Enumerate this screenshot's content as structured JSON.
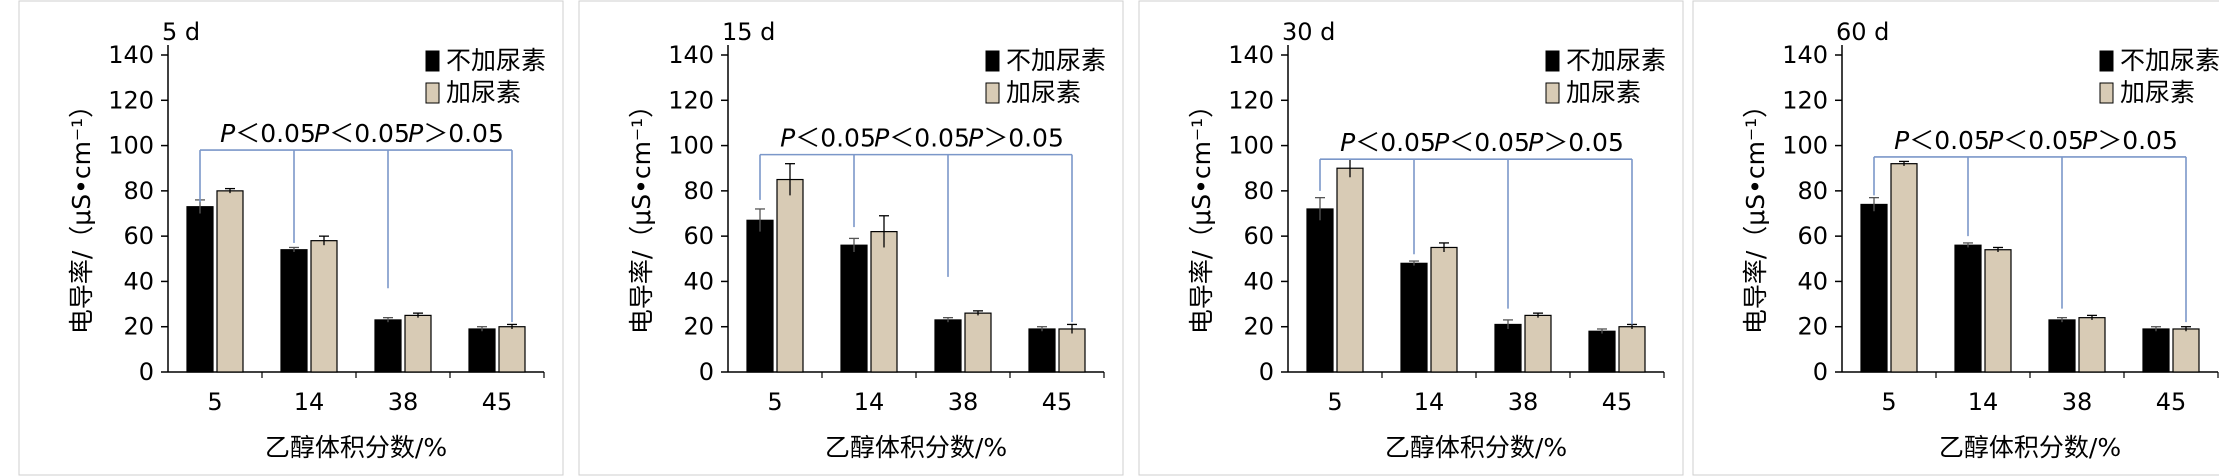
{
  "chart_data": [
    {
      "type": "bar",
      "title": "5 d",
      "xlabel": "乙醇体积分数/%",
      "ylabel": "电导率/（μS•cm⁻¹）",
      "categories": [
        "5",
        "14",
        "38",
        "45"
      ],
      "ylim": [
        0,
        140
      ],
      "yticks": [
        "0",
        "20",
        "40",
        "60",
        "80",
        "100",
        "120",
        "140"
      ],
      "series": [
        {
          "name": "不加尿素",
          "values": [
            73,
            54,
            23,
            19
          ],
          "errors": [
            3,
            1,
            1,
            1
          ],
          "color": "#000000"
        },
        {
          "name": "加尿素",
          "values": [
            80,
            58,
            25,
            20
          ],
          "errors": [
            1,
            2,
            1,
            1
          ],
          "color": "#d8cbb5"
        }
      ],
      "bracket_level": 98,
      "bracket_drops": [
        75,
        57,
        37,
        22
      ],
      "annotations": [
        {
          "text": "P＜0.05",
          "between": [
            0,
            1
          ]
        },
        {
          "text": "P＜0.05",
          "between": [
            1,
            2
          ]
        },
        {
          "text": "P＞0.05",
          "between": [
            2,
            3
          ]
        }
      ],
      "legend_position": "top-right",
      "grid": false
    },
    {
      "type": "bar",
      "title": "15 d",
      "xlabel": "乙醇体积分数/%",
      "ylabel": "电导率/（μS•cm⁻¹）",
      "categories": [
        "5",
        "14",
        "38",
        "45"
      ],
      "ylim": [
        0,
        140
      ],
      "yticks": [
        "0",
        "20",
        "40",
        "60",
        "80",
        "100",
        "120",
        "140"
      ],
      "series": [
        {
          "name": "不加尿素",
          "values": [
            67,
            56,
            23,
            19
          ],
          "errors": [
            5,
            3,
            1,
            1
          ],
          "color": "#000000"
        },
        {
          "name": "加尿素",
          "values": [
            85,
            62,
            26,
            19
          ],
          "errors": [
            7,
            7,
            1,
            2
          ],
          "color": "#d8cbb5"
        }
      ],
      "bracket_level": 96,
      "bracket_drops": [
        76,
        64,
        42,
        22
      ],
      "annotations": [
        {
          "text": "P＜0.05",
          "between": [
            0,
            1
          ]
        },
        {
          "text": "P＜0.05",
          "between": [
            1,
            2
          ]
        },
        {
          "text": "P＞0.05",
          "between": [
            2,
            3
          ]
        }
      ],
      "legend_position": "top-right",
      "grid": false
    },
    {
      "type": "bar",
      "title": "30 d",
      "xlabel": "乙醇体积分数/%",
      "ylabel": "电导率/（μS•cm⁻¹）",
      "categories": [
        "5",
        "14",
        "38",
        "45"
      ],
      "ylim": [
        0,
        140
      ],
      "yticks": [
        "0",
        "20",
        "40",
        "60",
        "80",
        "100",
        "120",
        "140"
      ],
      "series": [
        {
          "name": "不加尿素",
          "values": [
            72,
            48,
            21,
            18
          ],
          "errors": [
            5,
            1,
            2,
            1
          ],
          "color": "#000000"
        },
        {
          "name": "加尿素",
          "values": [
            90,
            55,
            25,
            20
          ],
          "errors": [
            4,
            2,
            1,
            1
          ],
          "color": "#d8cbb5"
        }
      ],
      "bracket_level": 94,
      "bracket_drops": [
        80,
        52,
        28,
        21
      ],
      "annotations": [
        {
          "text": "P＜0.05",
          "between": [
            0,
            1
          ]
        },
        {
          "text": "P＜0.05",
          "between": [
            1,
            2
          ]
        },
        {
          "text": "P＞0.05",
          "between": [
            2,
            3
          ]
        }
      ],
      "legend_position": "top-right",
      "grid": false
    },
    {
      "type": "bar",
      "title": "60 d",
      "xlabel": "乙醇体积分数/%",
      "ylabel": "电导率/（μS•cm⁻¹）",
      "categories": [
        "5",
        "14",
        "38",
        "45"
      ],
      "ylim": [
        0,
        140
      ],
      "yticks": [
        "0",
        "20",
        "40",
        "60",
        "80",
        "100",
        "120",
        "140"
      ],
      "series": [
        {
          "name": "不加尿素",
          "values": [
            74,
            56,
            23,
            19
          ],
          "errors": [
            3,
            1,
            1,
            1
          ],
          "color": "#000000"
        },
        {
          "name": "加尿素",
          "values": [
            92,
            54,
            24,
            19
          ],
          "errors": [
            1,
            1,
            1,
            1
          ],
          "color": "#d8cbb5"
        }
      ],
      "bracket_level": 95,
      "bracket_drops": [
        78,
        60,
        28,
        22
      ],
      "annotations": [
        {
          "text": "P＜0.05",
          "between": [
            0,
            1
          ]
        },
        {
          "text": "P＜0.05",
          "between": [
            1,
            2
          ]
        },
        {
          "text": "P＞0.05",
          "between": [
            2,
            3
          ]
        }
      ],
      "legend_position": "top-right",
      "grid": false
    }
  ],
  "colors": {
    "bracket": "#7b97c9",
    "axis": "#000000",
    "bar_outline": "#000000"
  }
}
